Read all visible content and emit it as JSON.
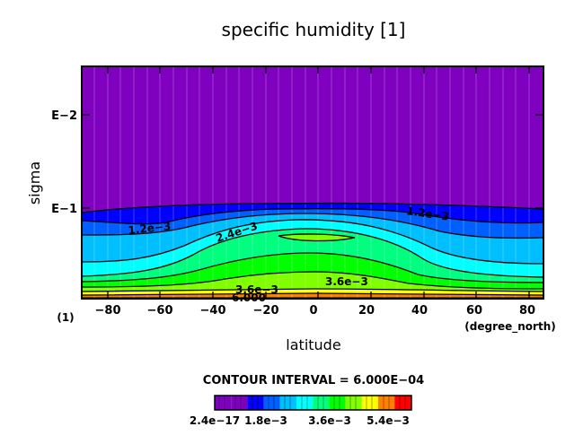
{
  "chart_data": {
    "type": "contour",
    "title": "specific humidity [1]",
    "xlabel": "latitude",
    "ylabel": "sigma",
    "x_unit": "(degree_north)",
    "y_unit": "(1)",
    "x_ticks": [
      "−80",
      "−60",
      "−40",
      "−20",
      "0",
      "20",
      "40",
      "60",
      "80"
    ],
    "x_tick_values": [
      -80,
      -60,
      -40,
      -20,
      0,
      20,
      40,
      60,
      80
    ],
    "xlim": [
      -87.5,
      87.5
    ],
    "y_ticks": [
      "E−2",
      "E−1"
    ],
    "y_tick_values": [
      0.01,
      0.1
    ],
    "y_scale": "log",
    "ylim": [
      1.0,
      0.003
    ],
    "contour_interval_text": "CONTOUR INTERVAL = 6.000E−04",
    "contour_labels": [
      "1.2e−3",
      "1.2e−3",
      "2.4e−3",
      "3.6e−3",
      "3.6e−3",
      "6.000"
    ],
    "colorbar": {
      "tick_labels": [
        "2.4e−17",
        "1.8e−3",
        "3.6e−3",
        "5.4e−3"
      ],
      "tick_values": [
        0,
        0.0018,
        0.0036,
        0.0054
      ],
      "colors": [
        "#7f00bf",
        "#7f00bf",
        "#0000ff",
        "#005fff",
        "#00bfff",
        "#00ffff",
        "#00ff7f",
        "#00ff00",
        "#7fff00",
        "#ffff00",
        "#ff7f00",
        "#ff0000"
      ]
    }
  }
}
